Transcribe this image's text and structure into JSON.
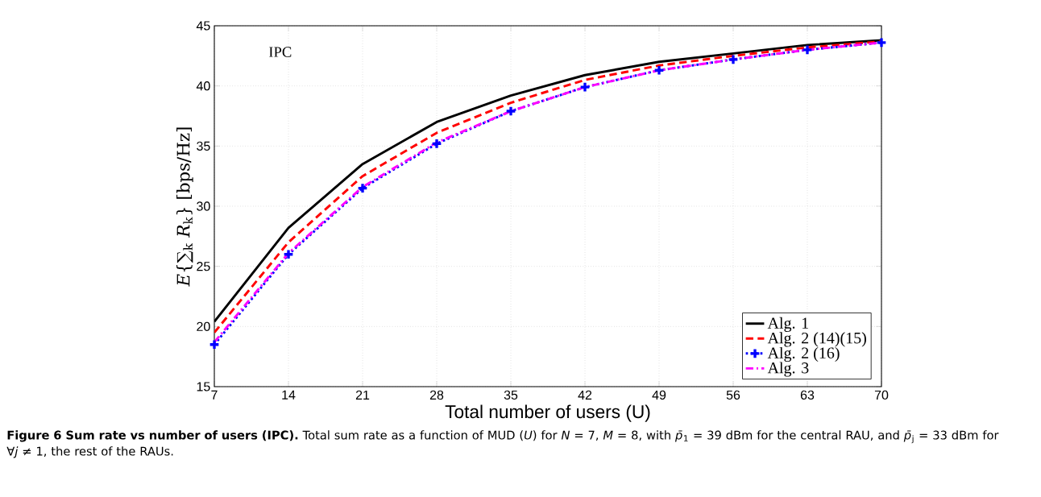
{
  "chart_data": {
    "type": "line",
    "xlabel": "Total number of users (U)",
    "ylabel": "*E*{∑$_{k}$ *R*$_{k}$} [bps/Hz]",
    "x": [
      7,
      14,
      21,
      28,
      35,
      42,
      49,
      56,
      63,
      70
    ],
    "series": [
      {
        "name": "Alg. 1",
        "color": "#000000",
        "line_style": "solid",
        "values": [
          20.4,
          28.2,
          33.5,
          37.0,
          39.2,
          40.9,
          42.0,
          42.7,
          43.4,
          43.8
        ]
      },
      {
        "name": "Alg. 2 (14)(15)",
        "color": "#ff0000",
        "line_style": "dashed",
        "values": [
          19.5,
          27.0,
          32.5,
          36.1,
          38.6,
          40.5,
          41.7,
          42.5,
          43.2,
          43.7
        ]
      },
      {
        "name": "Alg. 2 (16)",
        "color": "#0000ff",
        "line_style": "dotted",
        "marker": "cross",
        "values": [
          18.5,
          26.0,
          31.5,
          35.2,
          37.9,
          39.9,
          41.3,
          42.2,
          43.0,
          43.6
        ]
      },
      {
        "name": "Alg. 3",
        "color": "#ff00ff",
        "line_style": "dashdot",
        "values": [
          18.7,
          26.1,
          31.6,
          35.3,
          37.9,
          39.9,
          41.3,
          42.2,
          43.0,
          43.6
        ]
      }
    ],
    "xlim": [
      7,
      70
    ],
    "ylim": [
      15,
      45
    ],
    "xticks": [
      7,
      14,
      21,
      28,
      35,
      42,
      49,
      56,
      63,
      70
    ],
    "yticks": [
      15,
      20,
      25,
      30,
      35,
      40,
      45
    ],
    "grid": true,
    "legend": "bottom right",
    "annotations": [
      "IPC",
      "**Figure 6 Sum rate vs number of users (IPC).** Total sum rate as a function of MUD (*U*) for *N* = 7, *M* = 8, with *p̄*$_{1}$ = 39 dBm for the central RAU, and *p̄*$_{j}$ = 33 dBm for ∀*j* ≠ 1, the rest of the RAUs."
    ]
  }
}
